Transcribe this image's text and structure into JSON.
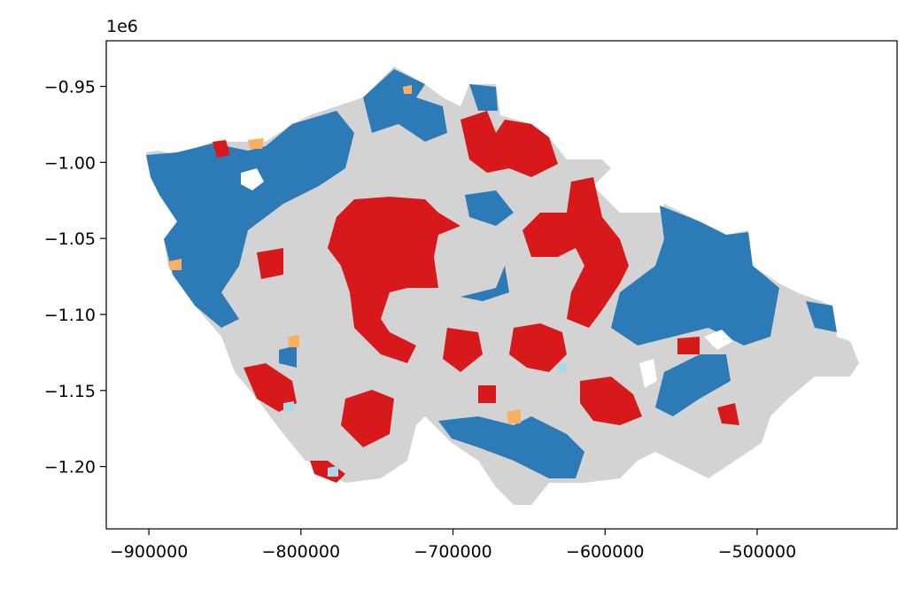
{
  "chart_data": {
    "type": "map",
    "offset_label": "1e6",
    "xlim": [
      -928000,
      -408000
    ],
    "ylim": [
      -1241000,
      -920000
    ],
    "xticks": [
      {
        "value": -900000,
        "label": "−900000"
      },
      {
        "value": -800000,
        "label": "−800000"
      },
      {
        "value": -700000,
        "label": "−700000"
      },
      {
        "value": -600000,
        "label": "−600000"
      },
      {
        "value": -500000,
        "label": "−500000"
      }
    ],
    "yticks": [
      {
        "value": -950000,
        "label": "−0.95"
      },
      {
        "value": -1000000,
        "label": "−1.00"
      },
      {
        "value": -1050000,
        "label": "−1.05"
      },
      {
        "value": -1100000,
        "label": "−1.10"
      },
      {
        "value": -1150000,
        "label": "−1.15"
      },
      {
        "value": -1200000,
        "label": "−1.20"
      }
    ]
  }
}
